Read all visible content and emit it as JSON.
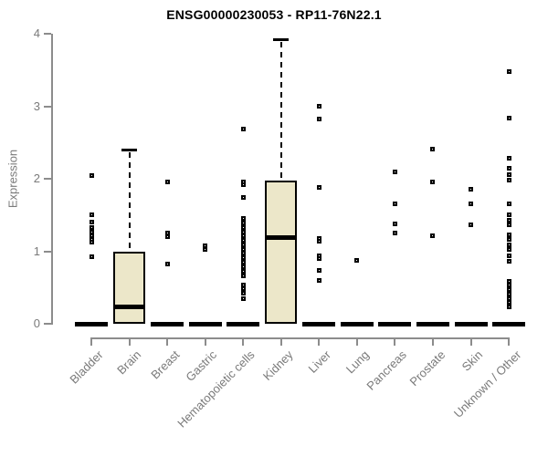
{
  "chart_data": {
    "type": "boxplot-with-points",
    "title": "ENSG00000230053 - RP11-76N22.1",
    "xlabel": "",
    "ylabel": "Expression",
    "ylim": [
      0,
      4
    ],
    "yticks": [
      0,
      1,
      2,
      3,
      4
    ],
    "grid": false,
    "legend": "none",
    "point_marker": "open-square",
    "colors": {
      "box_fill": "#ECE7C9",
      "box_stroke": "#000000",
      "axis": "#8C8C8C",
      "text": "#7A7A7A",
      "title": "#000000",
      "background": "#FFFFFF"
    },
    "categories": [
      "Bladder",
      "Brain",
      "Breast",
      "Gastric",
      "Hematopoietic cells",
      "Kidney",
      "Liver",
      "Lung",
      "Pancreas",
      "Prostate",
      "Skin",
      "Unknown / Other"
    ],
    "boxes": [
      {
        "category": "Bladder",
        "q1": 0,
        "median": 0,
        "q3": 0,
        "whisker_low": 0,
        "whisker_high": 0,
        "points": [
          2.05,
          1.5,
          1.4,
          1.33,
          1.26,
          1.21,
          1.16,
          1.13,
          0.92
        ]
      },
      {
        "category": "Brain",
        "q1": 0,
        "median": 0.23,
        "q3": 1.0,
        "whisker_low": 0,
        "whisker_high": 2.4,
        "points": []
      },
      {
        "category": "Breast",
        "q1": 0,
        "median": 0,
        "q3": 0,
        "whisker_low": 0,
        "whisker_high": 0,
        "points": [
          1.96,
          1.25,
          1.2,
          0.83
        ]
      },
      {
        "category": "Gastric",
        "q1": 0,
        "median": 0,
        "q3": 0,
        "whisker_low": 0,
        "whisker_high": 0,
        "points": [
          1.08,
          1.02
        ]
      },
      {
        "category": "Hematopoietic cells",
        "q1": 0,
        "median": 0,
        "q3": 0,
        "whisker_low": 0,
        "whisker_high": 0,
        "points": [
          2.68,
          1.95,
          1.92,
          1.74,
          1.45,
          1.39,
          1.33,
          1.27,
          1.21,
          1.15,
          1.09,
          1.03,
          0.97,
          0.91,
          0.85,
          0.79,
          0.72,
          0.66,
          0.54,
          0.48,
          0.42,
          0.35
        ]
      },
      {
        "category": "Kidney",
        "q1": 0,
        "median": 1.19,
        "q3": 1.98,
        "whisker_low": 0,
        "whisker_high": 3.92,
        "points": []
      },
      {
        "category": "Liver",
        "q1": 0,
        "median": 0,
        "q3": 0,
        "whisker_low": 0,
        "whisker_high": 0,
        "points": [
          3.0,
          2.82,
          1.88,
          1.18,
          1.14,
          0.94,
          0.9,
          0.73,
          0.6
        ]
      },
      {
        "category": "Lung",
        "q1": 0,
        "median": 0,
        "q3": 0,
        "whisker_low": 0,
        "whisker_high": 0,
        "points": [
          0.88
        ]
      },
      {
        "category": "Pancreas",
        "q1": 0,
        "median": 0,
        "q3": 0,
        "whisker_low": 0,
        "whisker_high": 0,
        "points": [
          2.09,
          1.65,
          1.38,
          1.25
        ]
      },
      {
        "category": "Prostate",
        "q1": 0,
        "median": 0,
        "q3": 0,
        "whisker_low": 0,
        "whisker_high": 0,
        "points": [
          2.41,
          1.96,
          1.21
        ]
      },
      {
        "category": "Skin",
        "q1": 0,
        "median": 0,
        "q3": 0,
        "whisker_low": 0,
        "whisker_high": 0,
        "points": [
          1.85,
          1.65,
          1.36
        ]
      },
      {
        "category": "Unknown / Other",
        "q1": 0,
        "median": 0,
        "q3": 0,
        "whisker_low": 0,
        "whisker_high": 0,
        "points": [
          3.48,
          2.84,
          2.28,
          2.14,
          2.06,
          1.98,
          1.66,
          1.5,
          1.43,
          1.36,
          1.23,
          1.16,
          1.09,
          1.03,
          0.94,
          0.86,
          0.59,
          0.53,
          0.47,
          0.41,
          0.35,
          0.29,
          0.23
        ]
      }
    ]
  }
}
